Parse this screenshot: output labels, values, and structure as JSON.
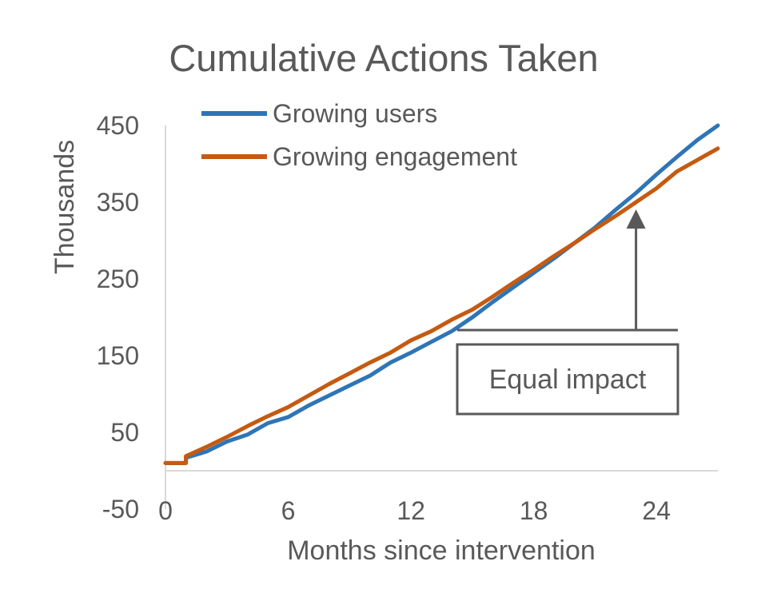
{
  "chart_data": {
    "type": "line",
    "title": "Cumulative Actions Taken",
    "xlabel": "Months since intervention",
    "ylabel": "Thousands",
    "xlim": [
      0,
      27
    ],
    "ylim": [
      -50,
      450
    ],
    "x_ticks": [
      0,
      6,
      12,
      18,
      24
    ],
    "y_ticks": [
      -50,
      50,
      150,
      250,
      350,
      450
    ],
    "grid": false,
    "legend_position": "top-left",
    "series": [
      {
        "name": "Growing users",
        "color": "#2E75B6",
        "x": [
          0,
          1,
          1,
          2,
          3,
          4,
          5,
          6,
          7,
          8,
          9,
          10,
          11,
          12,
          13,
          14,
          15,
          16,
          17,
          18,
          19,
          20,
          21,
          22,
          23,
          24,
          25,
          26,
          27
        ],
        "y": [
          10,
          10,
          17,
          25,
          38,
          47,
          62,
          70,
          85,
          98,
          111,
          124,
          141,
          154,
          168,
          182,
          200,
          220,
          239,
          258,
          277,
          297,
          317,
          340,
          362,
          386,
          409,
          431,
          450
        ]
      },
      {
        "name": "Growing engagement",
        "color": "#C55A11",
        "x": [
          0,
          1,
          1,
          2,
          3,
          4,
          5,
          6,
          7,
          8,
          9,
          10,
          11,
          12,
          13,
          14,
          15,
          16,
          17,
          18,
          19,
          20,
          21,
          22,
          23,
          24,
          25,
          26,
          27
        ],
        "y": [
          10,
          10,
          19,
          31,
          44,
          58,
          71,
          83,
          98,
          113,
          127,
          141,
          154,
          170,
          182,
          197,
          210,
          227,
          245,
          262,
          280,
          297,
          315,
          332,
          350,
          368,
          390,
          405,
          420
        ]
      }
    ],
    "annotation": {
      "text": "Equal impact",
      "target": [
        23,
        349
      ]
    }
  }
}
